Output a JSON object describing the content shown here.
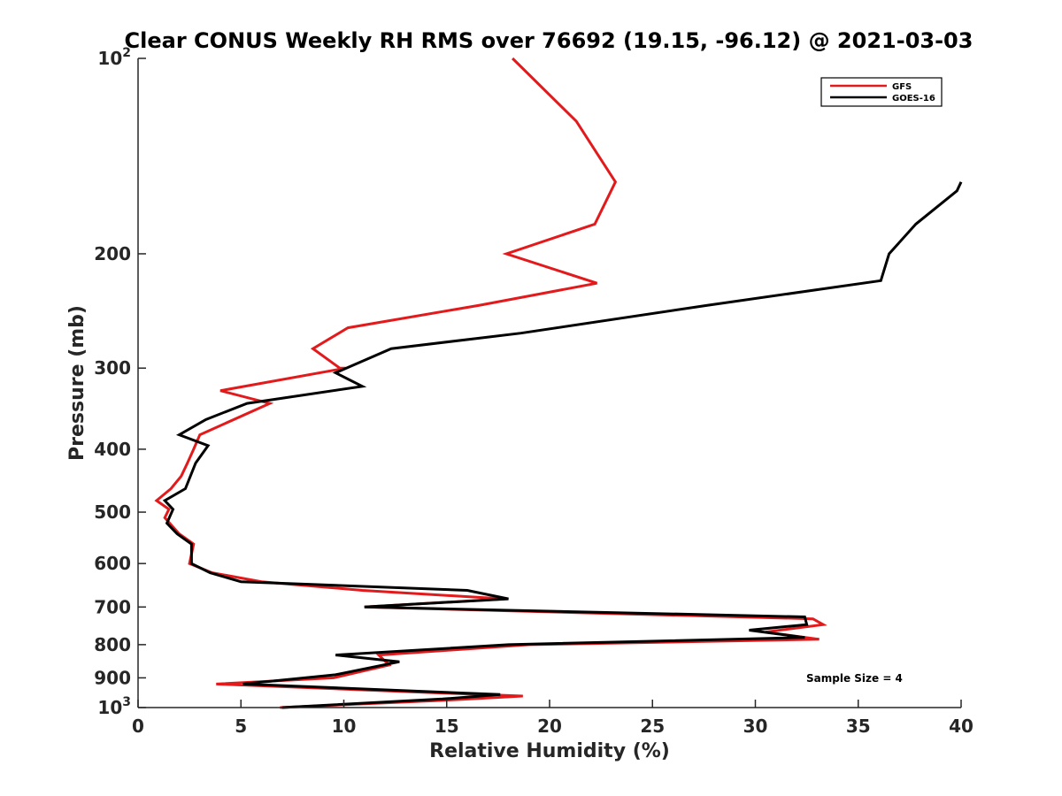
{
  "chart_data": {
    "type": "line",
    "title": "Clear CONUS Weekly RH RMS over 76692 (19.15, -96.12) @ 2021-03-03",
    "xlabel": "Relative Humidity (%)",
    "ylabel": "Pressure (mb)",
    "xlim": [
      0,
      40
    ],
    "ylim": [
      100,
      1000
    ],
    "yscale": "log",
    "y_reversed": true,
    "x_ticks": [
      0,
      5,
      10,
      15,
      20,
      25,
      30,
      35,
      40
    ],
    "y_ticks": [
      {
        "value": 100,
        "base": "10",
        "exp": "2"
      },
      {
        "value": 200,
        "label": "200"
      },
      {
        "value": 300,
        "label": "300"
      },
      {
        "value": 400,
        "label": "400"
      },
      {
        "value": 500,
        "label": "500"
      },
      {
        "value": 600,
        "label": "600"
      },
      {
        "value": 700,
        "label": "700"
      },
      {
        "value": 800,
        "label": "800"
      },
      {
        "value": 900,
        "label": "900"
      },
      {
        "value": 1000,
        "base": "10",
        "exp": "3"
      }
    ],
    "legend_location": "top-right",
    "annotation": "Sample Size = 4",
    "series": [
      {
        "name": "GFS",
        "color": "#e31a1c",
        "x": [
          18.2,
          21.3,
          22.3,
          23.2,
          22.2,
          17.9,
          22.3,
          16.6,
          10.2,
          8.5,
          9.8,
          10.1,
          4.0,
          6.4,
          3.0,
          2.7,
          2.4,
          2.1,
          1.6,
          0.9,
          1.5,
          1.3,
          2.0,
          2.7,
          2.5,
          3.6,
          6.0,
          10.9,
          17.8,
          11.0,
          32.8,
          33.3,
          30.5,
          33.1,
          19.0,
          11.7,
          12.2,
          9.5,
          3.8,
          14.8,
          18.7,
          14.8,
          6.9
        ],
        "y": [
          100,
          125,
          140,
          155,
          180,
          200,
          222,
          240,
          260,
          280,
          300,
          300,
          325,
          340,
          380,
          400,
          420,
          440,
          460,
          480,
          495,
          510,
          540,
          560,
          600,
          620,
          640,
          660,
          680,
          700,
          730,
          745,
          765,
          785,
          800,
          830,
          860,
          900,
          920,
          950,
          960,
          975,
          1000
        ]
      },
      {
        "name": "GOES-16",
        "color": "#000000",
        "x": [
          40.0,
          39.8,
          37.8,
          36.5,
          36.1,
          27.7,
          18.6,
          12.3,
          9.6,
          10.9,
          5.3,
          3.3,
          2.0,
          3.4,
          2.8,
          2.3,
          1.3,
          1.7,
          1.4,
          1.9,
          2.6,
          2.6,
          3.5,
          5.0,
          16.0,
          18.0,
          11.0,
          32.4,
          32.5,
          29.7,
          32.4,
          18.0,
          9.6,
          12.7,
          9.6,
          5.1,
          17.6,
          14.8,
          7.0
        ],
        "y": [
          155,
          160,
          180,
          200,
          220,
          240,
          265,
          280,
          305,
          320,
          340,
          360,
          380,
          395,
          420,
          460,
          480,
          495,
          520,
          540,
          560,
          600,
          620,
          640,
          660,
          680,
          700,
          725,
          745,
          760,
          780,
          800,
          830,
          850,
          890,
          920,
          955,
          970,
          1000
        ]
      }
    ]
  }
}
